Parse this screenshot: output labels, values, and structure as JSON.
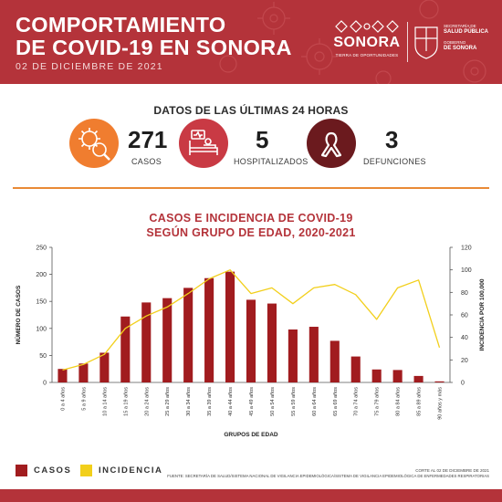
{
  "header": {
    "title_line1": "COMPORTAMIENTO",
    "title_line2": "DE COVID-19 EN SONORA",
    "date": "02 DE DICIEMBRE DE 2021",
    "logo_word": "SONORA",
    "logo_tagline": "TIERRA DE OPORTUNIDADES",
    "salud_line1": "SECRETARÍA DE",
    "salud_line2": "SALUD PÚBLICA",
    "salud_line3": "GOBIERNO",
    "salud_line4": "DE SONORA"
  },
  "summary": {
    "title": "DATOS DE LAS ÚLTIMAS 24 HORAS",
    "casos_value": "271",
    "casos_label": "CASOS",
    "hosp_value": "5",
    "hosp_label": "HOSPITALIZADOS",
    "def_value": "3",
    "def_label": "DEFUNCIONES",
    "icons": [
      "virus-magnifier-icon",
      "hospital-bed-icon",
      "ribbon-icon"
    ]
  },
  "chart_data": {
    "type": "bar",
    "title_line1": "CASOS E INCIDENCIA DE COVID-19",
    "title_line2": "SEGÚN GRUPO DE EDAD, 2020-2021",
    "xlabel": "GRUPOS DE EDAD",
    "ylabel_left": "NÚMERO DE CASOS",
    "ylabel_right": "INCIDENCIA POR 100,000",
    "ylim_left": [
      0,
      250
    ],
    "yticks_left": [
      0,
      50,
      100,
      150,
      200,
      250
    ],
    "ylim_right": [
      0,
      120
    ],
    "yticks_right": [
      0,
      20,
      40,
      60,
      80,
      100,
      120
    ],
    "categories": [
      "0 a 4 años",
      "5 a 9 años",
      "10 a 14 años",
      "15 a 19 años",
      "20 a 24 años",
      "25 a 29 años",
      "30 a 34 años",
      "35 a 39 años",
      "40 a 44 años",
      "45 a 49 años",
      "50 a 54 años",
      "55 a 59 años",
      "60 a 64 años",
      "65 a 69 años",
      "70 a 74 años",
      "75 a 79 años",
      "80 a 84 años",
      "85 a 89 años",
      "90 años y más"
    ],
    "series": [
      {
        "name": "CASOS",
        "axis": "left",
        "kind": "bar",
        "color": "#a11c1f",
        "values": [
          25,
          35,
          55,
          122,
          148,
          156,
          175,
          193,
          205,
          153,
          146,
          98,
          103,
          77,
          48,
          24,
          23,
          12,
          2
        ]
      },
      {
        "name": "INCIDENCIA",
        "axis": "right",
        "kind": "line",
        "color": "#f2cf1b",
        "values": [
          11,
          16,
          25,
          48,
          59,
          67,
          79,
          92,
          100,
          79,
          84,
          70,
          84,
          87,
          78,
          56,
          84,
          91,
          31
        ]
      }
    ],
    "legend_position": "bottom-left",
    "grid": false
  },
  "footer": {
    "corte": "CORTE AL 02 DE DICIEMBRE DE 2021",
    "fuente": "FUENTE: SECRETARÍA DE SALUD/SISTEMA NACIONAL DE VIGILANCIA EPIDEMIOLÓGICA/SISTEMA DE VIGILANCIA EPIDEMIOLÓGICA DE ENFERMEDADES RESPIRATORIAS"
  }
}
